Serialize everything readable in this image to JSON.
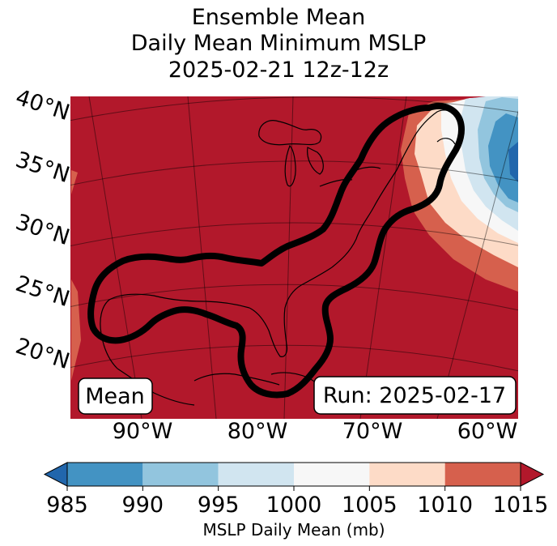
{
  "title": {
    "line1": "Ensemble Mean",
    "line2": "Daily Mean Minimum MSLP",
    "line3": "2025-02-21 12z-12z"
  },
  "map": {
    "lat_labels": [
      "40°N",
      "35°N",
      "30°N",
      "25°N",
      "20°N"
    ],
    "lon_labels": [
      "90°W",
      "80°W",
      "70°W",
      "60°W"
    ],
    "mean_box": "Mean",
    "run_box": "Run: 2025-02-17",
    "background_color": "#b2182b",
    "contour_color": "#000000"
  },
  "colorbar": {
    "ticks": [
      "985",
      "990",
      "995",
      "1000",
      "1005",
      "1010",
      "1015"
    ],
    "colors": [
      "#2166ac",
      "#4393c3",
      "#92c5de",
      "#d1e5f0",
      "#f7f7f7",
      "#fddbc7",
      "#d6604d",
      "#b2182b"
    ],
    "label": "MSLP Daily Mean (mb)"
  }
}
